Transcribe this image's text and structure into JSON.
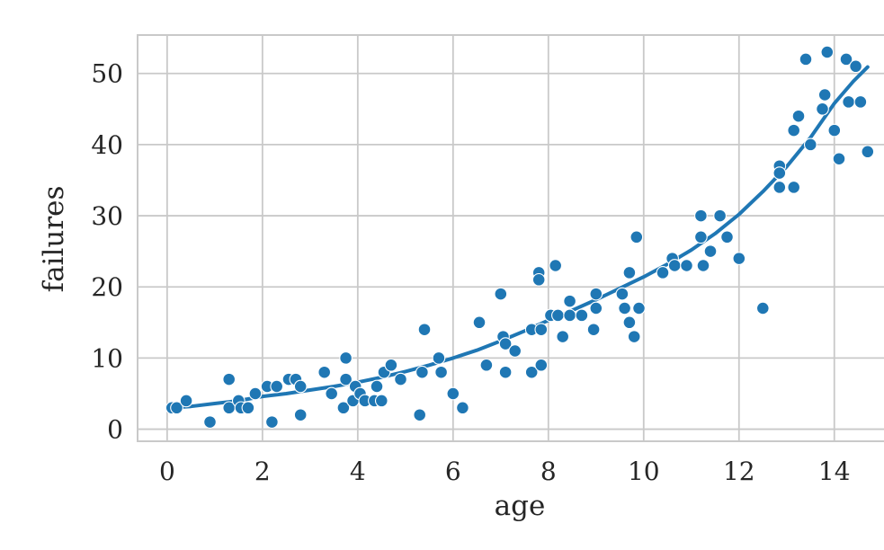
{
  "figure": {
    "background": "#ffffff",
    "grid_color": "#c9c9c9",
    "spine_color": "#c9c9c9",
    "text_color": "#262626",
    "accent": "#1f77b4"
  },
  "chart_data": {
    "type": "scatter",
    "title": "",
    "xlabel": "age",
    "ylabel": "failures",
    "xlim": [
      -0.62,
      15.42
    ],
    "ylim": [
      -1.7,
      55.4
    ],
    "x_ticks": [
      0,
      2,
      4,
      6,
      8,
      10,
      12,
      14
    ],
    "y_ticks": [
      0,
      10,
      20,
      30,
      40,
      50
    ],
    "grid": true,
    "legend": "none",
    "marker_color": "#1f77b4",
    "marker_edge_color": "#ffffff",
    "regression_color": "#1f77b4",
    "points": [
      [
        0.1,
        3
      ],
      [
        0.2,
        3
      ],
      [
        0.4,
        4
      ],
      [
        0.9,
        1
      ],
      [
        1.3,
        7
      ],
      [
        1.3,
        3
      ],
      [
        1.5,
        4
      ],
      [
        1.55,
        3
      ],
      [
        1.7,
        3
      ],
      [
        1.85,
        5
      ],
      [
        2.1,
        6
      ],
      [
        2.2,
        1
      ],
      [
        2.3,
        6
      ],
      [
        2.55,
        7
      ],
      [
        2.7,
        7
      ],
      [
        2.8,
        6
      ],
      [
        2.8,
        2
      ],
      [
        3.3,
        8
      ],
      [
        3.45,
        5
      ],
      [
        3.7,
        3
      ],
      [
        3.75,
        7
      ],
      [
        3.75,
        10
      ],
      [
        3.9,
        4
      ],
      [
        3.95,
        6
      ],
      [
        4.05,
        5
      ],
      [
        4.15,
        4
      ],
      [
        4.35,
        4
      ],
      [
        4.4,
        6
      ],
      [
        4.5,
        4
      ],
      [
        4.55,
        8
      ],
      [
        4.7,
        9
      ],
      [
        4.9,
        7
      ],
      [
        5.3,
        2
      ],
      [
        5.35,
        8
      ],
      [
        5.4,
        14
      ],
      [
        5.7,
        10
      ],
      [
        5.75,
        8
      ],
      [
        6.0,
        5
      ],
      [
        6.2,
        3
      ],
      [
        6.55,
        15
      ],
      [
        6.7,
        9
      ],
      [
        7.0,
        19
      ],
      [
        7.05,
        13
      ],
      [
        7.1,
        12
      ],
      [
        7.1,
        8
      ],
      [
        7.3,
        11
      ],
      [
        7.65,
        14
      ],
      [
        7.65,
        8
      ],
      [
        7.8,
        22
      ],
      [
        7.8,
        21
      ],
      [
        7.85,
        14
      ],
      [
        7.85,
        9
      ],
      [
        8.05,
        16
      ],
      [
        8.15,
        23
      ],
      [
        8.2,
        16
      ],
      [
        8.3,
        13
      ],
      [
        8.45,
        18
      ],
      [
        8.45,
        16
      ],
      [
        8.7,
        16
      ],
      [
        8.95,
        14
      ],
      [
        9.0,
        19
      ],
      [
        9.0,
        17
      ],
      [
        9.55,
        19
      ],
      [
        9.6,
        17
      ],
      [
        9.7,
        15
      ],
      [
        9.7,
        22
      ],
      [
        9.8,
        13
      ],
      [
        9.85,
        27
      ],
      [
        9.9,
        17
      ],
      [
        10.4,
        22
      ],
      [
        10.6,
        24
      ],
      [
        10.65,
        23
      ],
      [
        10.9,
        23
      ],
      [
        11.2,
        30
      ],
      [
        11.2,
        27
      ],
      [
        11.25,
        23
      ],
      [
        11.4,
        25
      ],
      [
        11.6,
        30
      ],
      [
        11.75,
        27
      ],
      [
        12.0,
        24
      ],
      [
        12.5,
        17
      ],
      [
        12.85,
        37
      ],
      [
        12.85,
        36
      ],
      [
        12.85,
        34
      ],
      [
        13.15,
        34
      ],
      [
        13.15,
        42
      ],
      [
        13.25,
        44
      ],
      [
        13.4,
        52
      ],
      [
        13.5,
        40
      ],
      [
        13.75,
        45
      ],
      [
        13.8,
        47
      ],
      [
        13.85,
        53
      ],
      [
        14.0,
        42
      ],
      [
        14.1,
        38
      ],
      [
        14.25,
        52
      ],
      [
        14.3,
        46
      ],
      [
        14.45,
        51
      ],
      [
        14.55,
        46
      ],
      [
        14.7,
        39
      ]
    ],
    "regression_line": [
      [
        0.05,
        3.0
      ],
      [
        0.5,
        3.2
      ],
      [
        1,
        3.6
      ],
      [
        1.5,
        4.0
      ],
      [
        2,
        4.6
      ],
      [
        2.5,
        5.0
      ],
      [
        3,
        5.5
      ],
      [
        3.5,
        6.0
      ],
      [
        4,
        6.6
      ],
      [
        4.5,
        7.3
      ],
      [
        5,
        8.1
      ],
      [
        5.5,
        9.0
      ],
      [
        6,
        10.0
      ],
      [
        6.5,
        11.1
      ],
      [
        7,
        12.4
      ],
      [
        7.5,
        13.8
      ],
      [
        8,
        15.3
      ],
      [
        8.5,
        16.7
      ],
      [
        9,
        18.2
      ],
      [
        9.5,
        19.8
      ],
      [
        10,
        21.4
      ],
      [
        10.5,
        23.2
      ],
      [
        11,
        25.2
      ],
      [
        11.5,
        27.5
      ],
      [
        12,
        30.2
      ],
      [
        12.5,
        33.4
      ],
      [
        13,
        36.9
      ],
      [
        13.5,
        41.0
      ],
      [
        14,
        45.8
      ],
      [
        14.4,
        48.9
      ],
      [
        14.7,
        50.9
      ]
    ]
  }
}
